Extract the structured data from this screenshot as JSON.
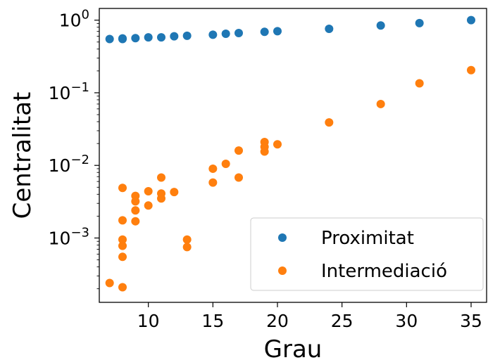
{
  "chart_data": {
    "type": "scatter",
    "title": "",
    "xlabel": "Grau",
    "ylabel": "Centralitat",
    "xlim": [
      6.2,
      36.2
    ],
    "ylim": [
      0.00013,
      1.45
    ],
    "yscale": "log",
    "grid": false,
    "legend_position": "lower-right",
    "x_ticks": [
      {
        "value": 10,
        "label": "10"
      },
      {
        "value": 15,
        "label": "15"
      },
      {
        "value": 20,
        "label": "20"
      },
      {
        "value": 25,
        "label": "25"
      },
      {
        "value": 30,
        "label": "30"
      },
      {
        "value": 35,
        "label": "35"
      }
    ],
    "y_ticks": [
      {
        "value": 0.001,
        "base": "10",
        "exp": "−3"
      },
      {
        "value": 0.01,
        "base": "10",
        "exp": "−2"
      },
      {
        "value": 0.1,
        "base": "10",
        "exp": "−1"
      },
      {
        "value": 1,
        "base": "10",
        "exp": "0"
      }
    ],
    "series": [
      {
        "name": "Proximitat",
        "color": "#1f77b4",
        "points": [
          [
            7,
            0.55
          ],
          [
            8,
            0.55
          ],
          [
            8,
            0.56
          ],
          [
            9,
            0.565
          ],
          [
            10,
            0.58
          ],
          [
            11,
            0.58
          ],
          [
            12,
            0.6
          ],
          [
            13,
            0.61
          ],
          [
            15,
            0.63
          ],
          [
            16,
            0.65
          ],
          [
            17,
            0.665
          ],
          [
            19,
            0.69
          ],
          [
            20,
            0.705
          ],
          [
            24,
            0.76
          ],
          [
            28,
            0.845
          ],
          [
            31,
            0.91
          ],
          [
            35,
            1.0
          ]
        ]
      },
      {
        "name": "Intermediació",
        "color": "#ff7f0e",
        "points": [
          [
            7,
            0.00024
          ],
          [
            8,
            0.00021
          ],
          [
            8,
            0.00055
          ],
          [
            8,
            0.00078
          ],
          [
            8,
            0.00095
          ],
          [
            8,
            0.00175
          ],
          [
            8,
            0.0049
          ],
          [
            9,
            0.0017
          ],
          [
            9,
            0.0024
          ],
          [
            9,
            0.0032
          ],
          [
            9,
            0.0038
          ],
          [
            10,
            0.0028
          ],
          [
            10,
            0.0044
          ],
          [
            11,
            0.0035
          ],
          [
            11,
            0.0041
          ],
          [
            11,
            0.0068
          ],
          [
            12,
            0.0043
          ],
          [
            13,
            0.00075
          ],
          [
            13,
            0.00095
          ],
          [
            15,
            0.0058
          ],
          [
            15,
            0.009
          ],
          [
            16,
            0.0105
          ],
          [
            17,
            0.0068
          ],
          [
            17,
            0.016
          ],
          [
            19,
            0.0155
          ],
          [
            19,
            0.018
          ],
          [
            19,
            0.021
          ],
          [
            20,
            0.0195
          ],
          [
            24,
            0.039
          ],
          [
            28,
            0.07
          ],
          [
            31,
            0.135
          ],
          [
            35,
            0.205
          ]
        ]
      }
    ]
  }
}
